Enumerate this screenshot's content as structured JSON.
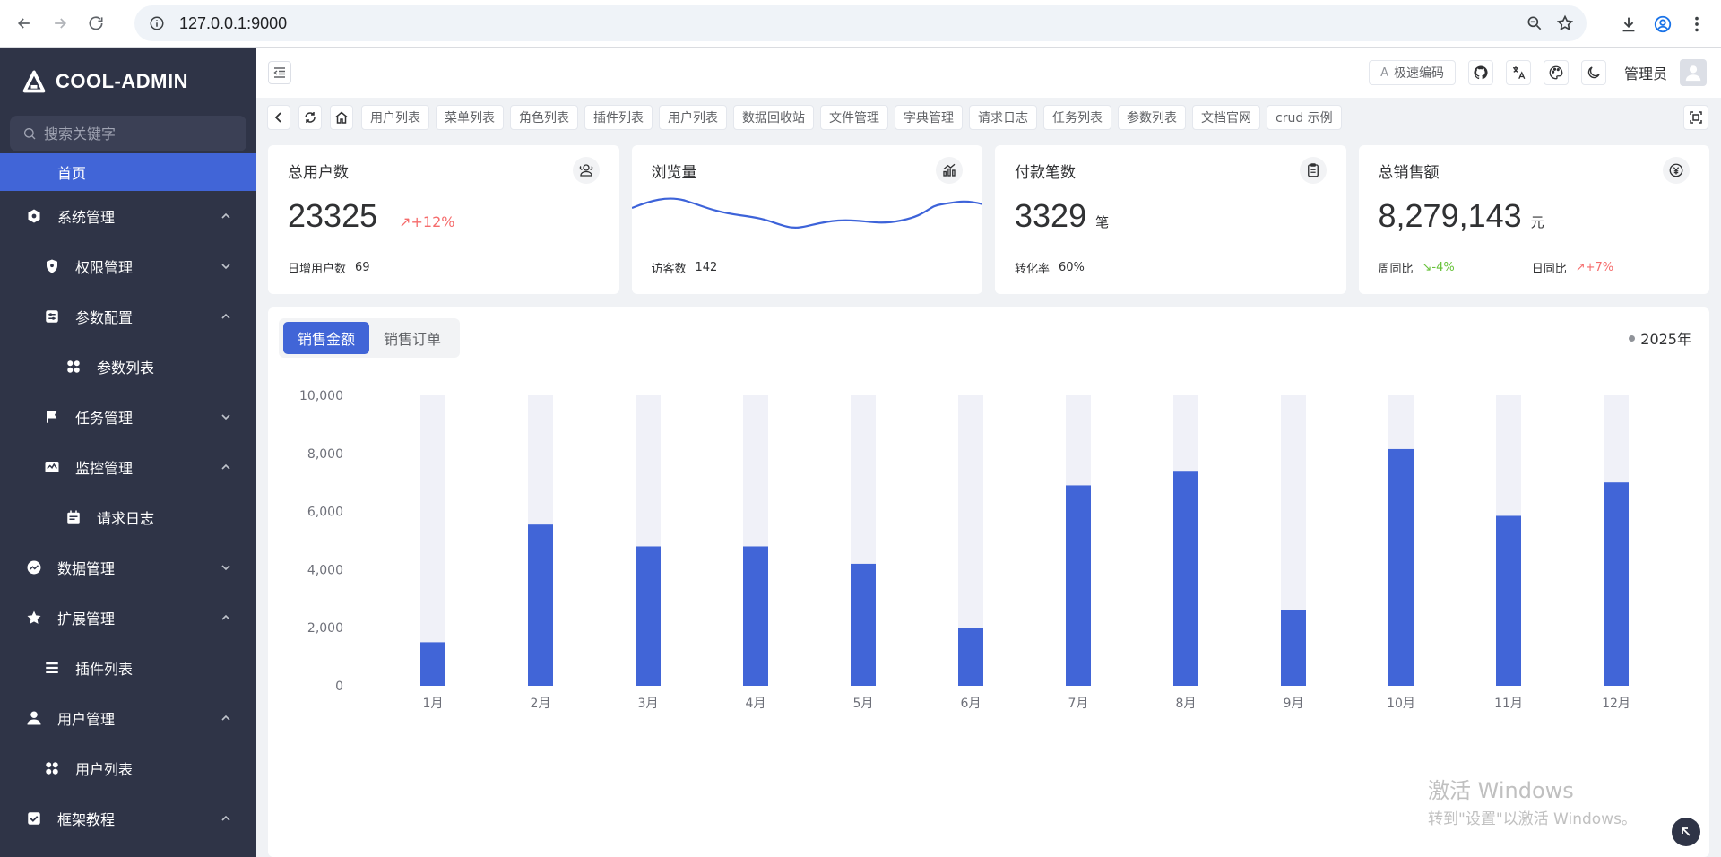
{
  "browser": {
    "url": "127.0.0.1:9000"
  },
  "sidebar": {
    "logo": "COOL-ADMIN",
    "search_placeholder": "搜索关键字",
    "items": [
      {
        "label": "首页",
        "active": true
      },
      {
        "label": "系统管理"
      },
      {
        "label": "权限管理"
      },
      {
        "label": "参数配置"
      },
      {
        "label": "参数列表"
      },
      {
        "label": "任务管理"
      },
      {
        "label": "监控管理"
      },
      {
        "label": "请求日志"
      },
      {
        "label": "数据管理"
      },
      {
        "label": "扩展管理"
      },
      {
        "label": "插件列表"
      },
      {
        "label": "用户管理"
      },
      {
        "label": "用户列表"
      },
      {
        "label": "框架教程"
      }
    ]
  },
  "header": {
    "code_button": "极速编码",
    "code_icon_text": "A",
    "admin_name": "管理员"
  },
  "tabs": [
    "用户列表",
    "菜单列表",
    "角色列表",
    "插件列表",
    "用户列表",
    "数据回收站",
    "文件管理",
    "字典管理",
    "请求日志",
    "任务列表",
    "参数列表",
    "文档官网",
    "crud 示例"
  ],
  "cards": {
    "users": {
      "title": "总用户数",
      "value": "23325",
      "trend": "↗+12%",
      "foot_label": "日增用户数",
      "foot_value": "69"
    },
    "views": {
      "title": "浏览量",
      "foot_label": "访客数",
      "foot_value": "142"
    },
    "payments": {
      "title": "付款笔数",
      "value": "3329",
      "unit": "笔",
      "foot_label": "转化率",
      "foot_value": "60%"
    },
    "sales": {
      "title": "总销售额",
      "value": "8,279,143",
      "unit": "元",
      "week_label": "周同比",
      "week_value": "↘-4%",
      "day_label": "日同比",
      "day_value": "↗+7%"
    }
  },
  "chart_panel": {
    "tab_amount": "销售金额",
    "tab_orders": "销售订单",
    "year": "2025年"
  },
  "chart_data": {
    "type": "bar",
    "categories": [
      "1月",
      "2月",
      "3月",
      "4月",
      "5月",
      "6月",
      "7月",
      "8月",
      "9月",
      "10月",
      "11月",
      "12月"
    ],
    "values": [
      1500,
      5550,
      4800,
      4800,
      4200,
      2000,
      6900,
      7400,
      2600,
      8150,
      5850,
      7000
    ],
    "background_max": 10000,
    "ylim": [
      0,
      10000
    ],
    "yticks": [
      "10,000",
      "8,000",
      "6,000",
      "4,000",
      "2,000",
      "0"
    ],
    "bar_color": "#4165d7",
    "background_color": "#f0f1f8"
  },
  "watermark": {
    "line1": "激活 Windows",
    "line2": "转到\"设置\"以激活 Windows。"
  }
}
